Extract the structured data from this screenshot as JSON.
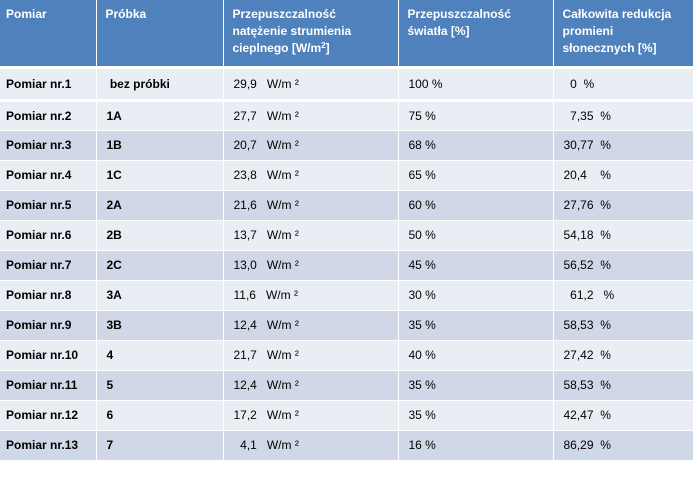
{
  "headers": {
    "pomiar": "Pomiar",
    "probka": "Próbka",
    "przep_ciepla_line1": "Przepuszczalność natężenie strumienia cieplnego [W/m",
    "przep_ciepla_sup": "2",
    "przep_ciepla_end": "]",
    "przep_swiatla": "Przepuszczalność światła  [%]",
    "redukcja": "Całkowita redukcja promieni słonecznych [%]"
  },
  "rows": [
    {
      "pomiar": "Pomiar nr.1",
      "probka": " bez próbki",
      "cieplo": "29,9   W/m ²",
      "swiatlo": "100 %",
      "redukcja": "  0  %"
    },
    {
      "pomiar": "Pomiar nr.2",
      "probka": "1A",
      "cieplo": "27,7   W/m ²",
      "swiatlo": "75 %",
      "redukcja": "  7,35  %"
    },
    {
      "pomiar": "Pomiar nr.3",
      "probka": "1B",
      "cieplo": "20,7   W/m ²",
      "swiatlo": "68 %",
      "redukcja": "30,77  %"
    },
    {
      "pomiar": "Pomiar nr.4",
      "probka": "1C",
      "cieplo": "23,8   W/m ²",
      "swiatlo": "65 %",
      "redukcja": "20,4    %"
    },
    {
      "pomiar": "Pomiar nr.5",
      "probka": "2A",
      "cieplo": "21,6   W/m ²",
      "swiatlo": "60 %",
      "redukcja": "27,76  %"
    },
    {
      "pomiar": "Pomiar nr.6",
      "probka": "2B",
      "cieplo": "13,7   W/m ²",
      "swiatlo": "50 %",
      "redukcja": "54,18  %"
    },
    {
      "pomiar": "Pomiar nr.7",
      "probka": "2C",
      "cieplo": "13,0   W/m ²",
      "swiatlo": "45 %",
      "redukcja": "56,52  %"
    },
    {
      "pomiar": "Pomiar nr.8",
      "probka": "3A",
      "cieplo": "11,6   W/m ²",
      "swiatlo": "30 %",
      "redukcja": "  61,2   %"
    },
    {
      "pomiar": "Pomiar nr.9",
      "probka": "3B",
      "cieplo": "12,4   W/m ²",
      "swiatlo": "35 %",
      "redukcja": "58,53  %"
    },
    {
      "pomiar": "Pomiar nr.10",
      "probka": "4",
      "cieplo": "21,7   W/m ²",
      "swiatlo": "40 %",
      "redukcja": "27,42  %"
    },
    {
      "pomiar": "Pomiar nr.11",
      "probka": "5",
      "cieplo": "12,4   W/m ²",
      "swiatlo": "35 %",
      "redukcja": "58,53  %"
    },
    {
      "pomiar": "Pomiar nr.12",
      "probka": "6",
      "cieplo": "17,2   W/m ²",
      "swiatlo": "35 %",
      "redukcja": "42,47  %"
    },
    {
      "pomiar": "Pomiar nr.13",
      "probka": "7",
      "cieplo": "  4,1   W/m ²",
      "swiatlo": "16 %",
      "redukcja": "86,29  %"
    }
  ]
}
